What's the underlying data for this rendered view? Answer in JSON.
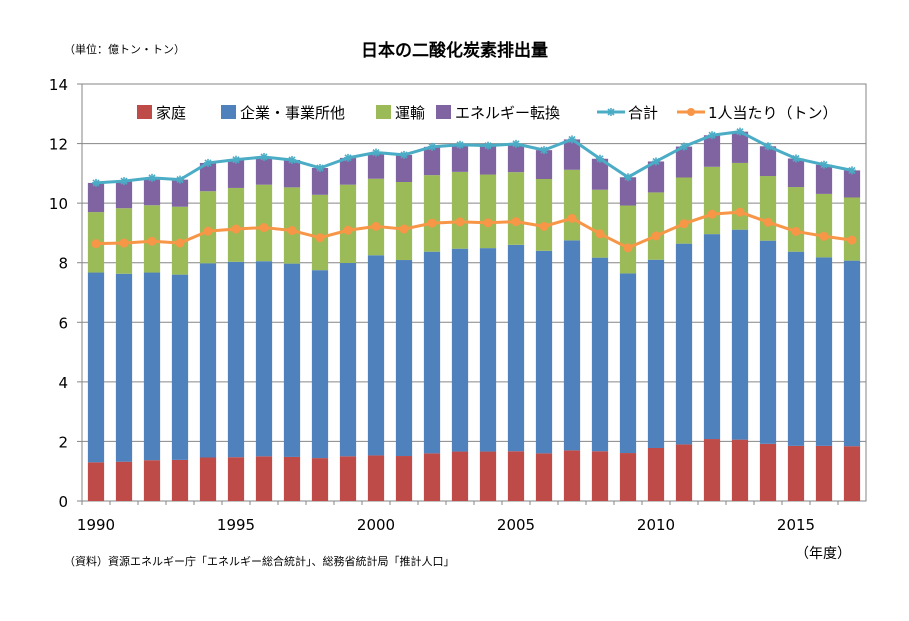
{
  "chart_data": {
    "type": "bar",
    "title": "日本の二酸化炭素排出量",
    "unit_note": "（単位：億トン・トン）",
    "xlabel": "（年度）",
    "source": "（資料）資源エネルギー庁「エネルギー総合統計」、総務省統計局「推計人口」",
    "stacked": true,
    "ylim": [
      0,
      14
    ],
    "yticks": [
      0,
      2,
      4,
      6,
      8,
      10,
      12,
      14
    ],
    "xtick_labels": [
      "1990",
      "1995",
      "2000",
      "2005",
      "2010",
      "2015"
    ],
    "grid": "horizontal",
    "legend_position": "top",
    "categories": [
      1990,
      1991,
      1992,
      1993,
      1994,
      1995,
      1996,
      1997,
      1998,
      1999,
      2000,
      2001,
      2002,
      2003,
      2004,
      2005,
      2006,
      2007,
      2008,
      2009,
      2010,
      2011,
      2012,
      2013,
      2014,
      2015,
      2016,
      2017
    ],
    "series": [
      {
        "name": "家庭",
        "kind": "bar",
        "color": "#BE4B48",
        "values": [
          1.3,
          1.32,
          1.37,
          1.38,
          1.46,
          1.47,
          1.5,
          1.48,
          1.44,
          1.5,
          1.53,
          1.51,
          1.6,
          1.66,
          1.66,
          1.67,
          1.6,
          1.7,
          1.67,
          1.61,
          1.78,
          1.9,
          2.08,
          2.06,
          1.92,
          1.85,
          1.85,
          1.84
        ]
      },
      {
        "name": "企業・事業所他",
        "kind": "bar",
        "color": "#4F81BD",
        "values": [
          6.37,
          6.31,
          6.3,
          6.22,
          6.52,
          6.56,
          6.55,
          6.49,
          6.31,
          6.49,
          6.72,
          6.58,
          6.77,
          6.81,
          6.83,
          6.93,
          6.8,
          7.05,
          6.5,
          6.03,
          6.32,
          6.74,
          6.88,
          7.05,
          6.82,
          6.52,
          6.33,
          6.23
        ]
      },
      {
        "name": "運輸",
        "kind": "bar",
        "color": "#9BBB59",
        "values": [
          2.03,
          2.2,
          2.26,
          2.28,
          2.42,
          2.48,
          2.57,
          2.56,
          2.53,
          2.63,
          2.57,
          2.62,
          2.57,
          2.58,
          2.47,
          2.44,
          2.41,
          2.37,
          2.28,
          2.28,
          2.26,
          2.22,
          2.26,
          2.24,
          2.17,
          2.17,
          2.13,
          2.12
        ]
      },
      {
        "name": "エネルギー転換",
        "kind": "bar",
        "color": "#8064A2",
        "values": [
          0.98,
          0.91,
          0.92,
          0.91,
          0.95,
          0.95,
          0.93,
          0.92,
          0.9,
          0.9,
          0.88,
          0.91,
          0.95,
          0.91,
          0.97,
          0.95,
          0.97,
          1.02,
          1.04,
          0.95,
          1.04,
          1.04,
          1.06,
          1.05,
          1.0,
          0.96,
          0.98,
          0.91
        ]
      },
      {
        "name": "合計",
        "kind": "line",
        "color": "#4BACC6",
        "values": [
          10.68,
          10.74,
          10.85,
          10.79,
          11.35,
          11.46,
          11.55,
          11.45,
          11.18,
          11.52,
          11.7,
          11.62,
          11.89,
          11.96,
          11.93,
          11.99,
          11.78,
          12.14,
          11.49,
          10.87,
          11.4,
          11.9,
          12.28,
          12.4,
          11.91,
          11.5,
          11.29,
          11.1
        ]
      },
      {
        "name": "1人当たり（トン）",
        "kind": "line",
        "color": "#F79646",
        "values": [
          8.64,
          8.66,
          8.72,
          8.66,
          9.06,
          9.13,
          9.18,
          9.08,
          8.84,
          9.09,
          9.22,
          9.13,
          9.33,
          9.37,
          9.34,
          9.38,
          9.22,
          9.49,
          8.97,
          8.5,
          8.9,
          9.31,
          9.63,
          9.7,
          9.36,
          9.05,
          8.89,
          8.76
        ]
      }
    ]
  }
}
